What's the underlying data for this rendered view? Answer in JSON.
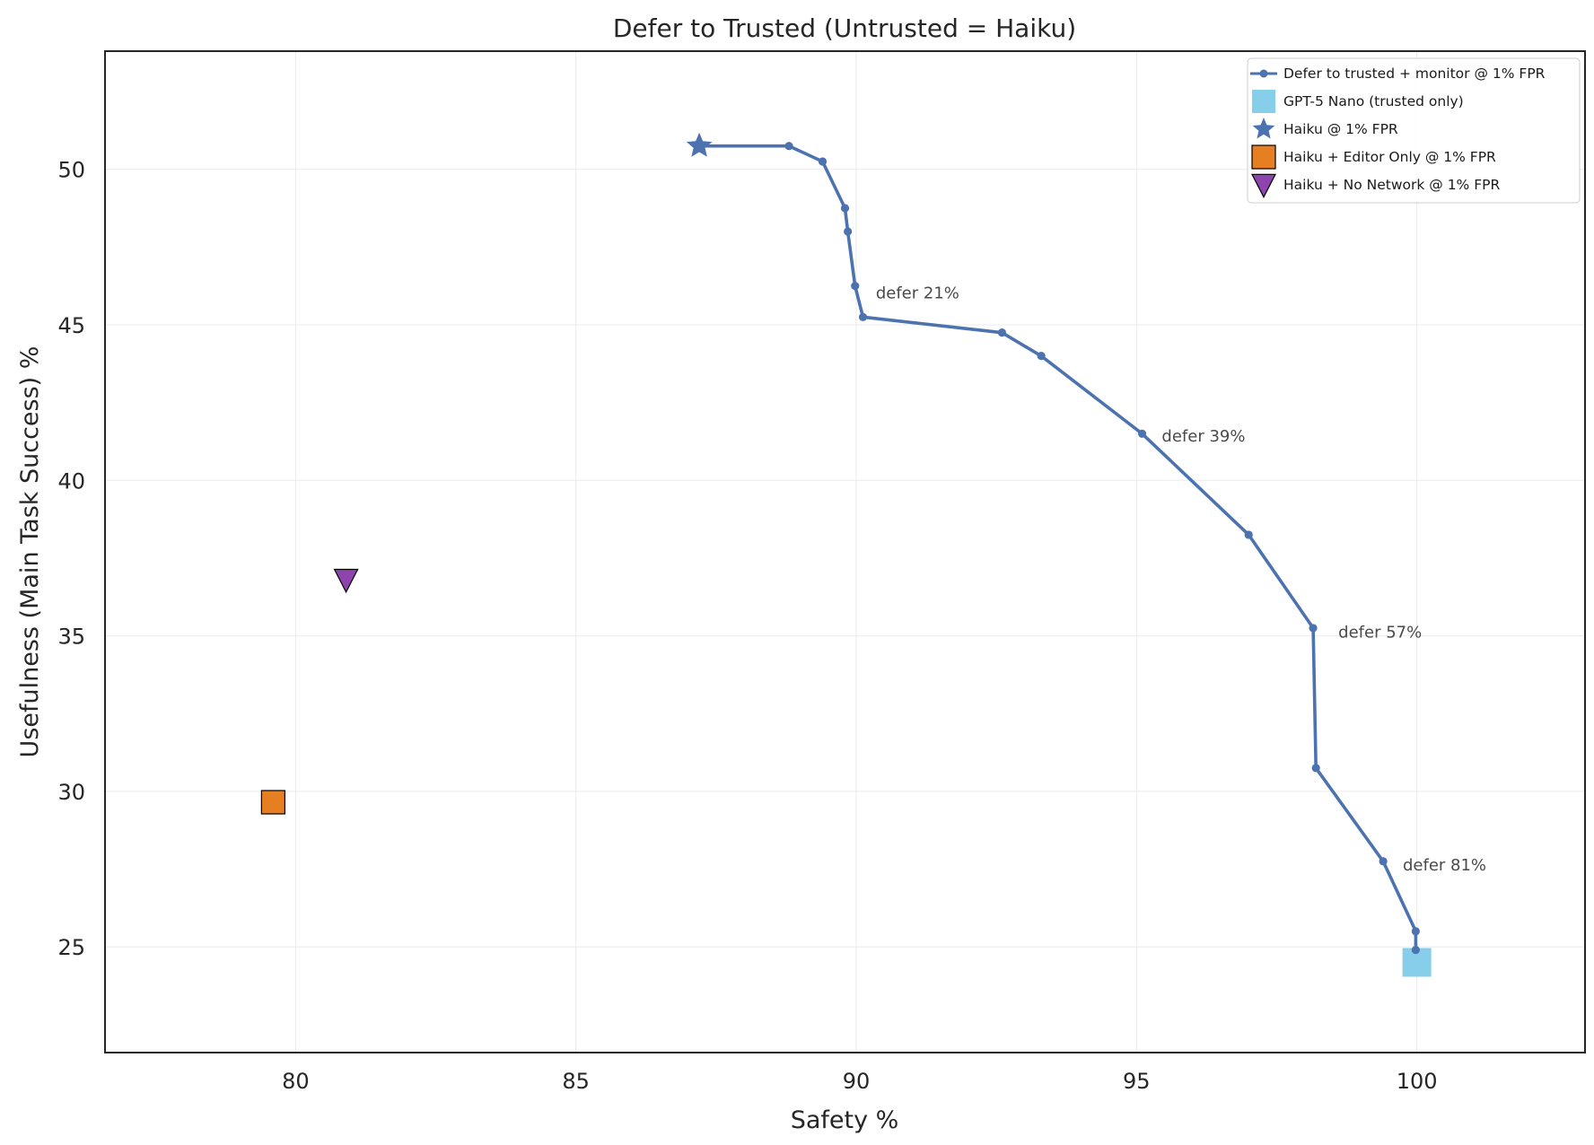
{
  "chart_data": {
    "type": "line",
    "title": "Defer to Trusted (Untrusted = Haiku)",
    "xlabel": "Safety %",
    "ylabel": "Usefulness (Main Task Success) %",
    "xlim": [
      76.6,
      103.0
    ],
    "ylim": [
      21.6,
      53.8
    ],
    "xticks": [
      80,
      85,
      90,
      95,
      100
    ],
    "yticks": [
      25,
      30,
      35,
      40,
      45,
      50
    ],
    "grid": true,
    "legend_position": "top-right",
    "series": [
      {
        "name": "Defer to trusted + monitor @ 1% FPR",
        "kind": "line",
        "color": "#4c72b0",
        "x": [
          87.2,
          88.8,
          89.4,
          89.8,
          89.85,
          89.98,
          90.12,
          92.6,
          93.3,
          95.1,
          97.0,
          98.15,
          98.2,
          99.4,
          99.98,
          99.98
        ],
        "y": [
          50.75,
          50.75,
          50.25,
          48.75,
          48.0,
          46.25,
          45.25,
          44.75,
          44.0,
          41.5,
          38.25,
          35.25,
          30.75,
          27.75,
          25.5,
          24.9
        ]
      },
      {
        "name": "GPT-5 Nano (trusted only)",
        "kind": "marker",
        "marker": "square",
        "color": "#87ceeb",
        "x": [
          100.0
        ],
        "y": [
          24.5
        ]
      },
      {
        "name": "Haiku @ 1% FPR",
        "kind": "marker",
        "marker": "star",
        "color": "#4c72b0",
        "x": [
          87.2
        ],
        "y": [
          50.75
        ]
      },
      {
        "name": "Haiku + Editor Only @ 1% FPR",
        "kind": "marker",
        "marker": "square",
        "color": "#e67e22",
        "x": [
          79.6
        ],
        "y": [
          29.65
        ]
      },
      {
        "name": "Haiku + No Network @ 1% FPR",
        "kind": "marker",
        "marker": "triangle-down",
        "color": "#8e44ad",
        "x": [
          80.9
        ],
        "y": [
          36.8
        ]
      }
    ],
    "annotations": [
      {
        "text": "defer 21%",
        "x": 90.35,
        "y": 45.85
      },
      {
        "text": "defer 39%",
        "x": 95.45,
        "y": 41.25
      },
      {
        "text": "defer 57%",
        "x": 98.6,
        "y": 34.95
      },
      {
        "text": "defer 81%",
        "x": 99.75,
        "y": 27.45
      }
    ]
  }
}
